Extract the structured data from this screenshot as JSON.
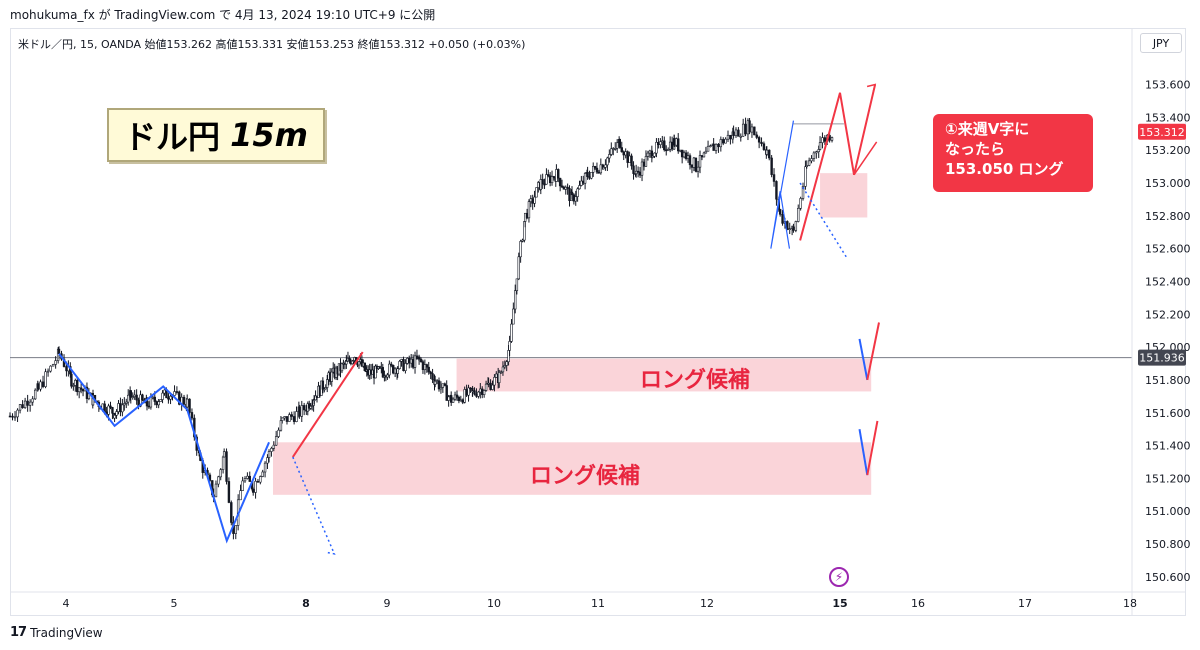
{
  "header": {
    "publish_line": "mohukuma_fx が TradingView.com で 4月 13, 2024 19:10 UTC+9 に公開"
  },
  "symbol_line": {
    "text": "米ドル／円, 15, OANDA  始値153.262  高値153.331  安値153.253  終値153.312  +0.050 (+0.03%)"
  },
  "currency": "JPY",
  "title": {
    "pair": "ドル円",
    "timeframe": "15m"
  },
  "zones": {
    "upper_label": "ロング候補",
    "lower_label": "ロング候補"
  },
  "callout": {
    "line1": "①来週V字に",
    "line2": "なったら",
    "line3": "153.050 ロング"
  },
  "footer": {
    "brand": "TradingView",
    "mark": "17"
  },
  "colors": {
    "bull_candle": "#131722",
    "zone_fill": "#f9cdd2",
    "red_line": "#f23645",
    "blue_line": "#2962ff",
    "price_tag": "#f23645",
    "ref_tag": "#434651"
  },
  "icons": {
    "flash": "lightning-icon",
    "logo": "tradingview-logo-icon"
  },
  "chart_data": {
    "type": "candlestick",
    "symbol": "USDJPY",
    "interval": "15",
    "y_ticks": [
      153.6,
      153.4,
      153.2,
      153.0,
      152.8,
      152.6,
      152.4,
      152.2,
      152.0,
      151.8,
      151.6,
      151.4,
      151.2,
      151.0,
      150.8,
      150.6
    ],
    "y_tick_labels": [
      "153.600",
      "153.400",
      "153.200",
      "153.000",
      "152.800",
      "152.600",
      "152.400",
      "152.200",
      "152.000",
      "151.800",
      "151.600",
      "151.400",
      "151.200",
      "151.000",
      "150.800",
      "150.600"
    ],
    "ylim": [
      150.52,
      153.78
    ],
    "x_ticks": [
      "4",
      "5",
      "8",
      "9",
      "10",
      "11",
      "12",
      "15",
      "16",
      "17",
      "18"
    ],
    "x_tick_days": [
      4,
      5,
      8,
      9,
      10,
      11,
      12,
      15,
      16,
      17,
      18
    ],
    "current_price_label": "153.312",
    "current_price": 153.312,
    "ref_price_label": "151.936",
    "ref_price": 151.936,
    "price_path": [
      [
        3.6,
        151.58
      ],
      [
        3.8,
        151.74
      ],
      [
        3.95,
        151.96
      ],
      [
        4.05,
        151.8
      ],
      [
        4.25,
        151.68
      ],
      [
        4.45,
        151.6
      ],
      [
        4.6,
        151.7
      ],
      [
        4.75,
        151.65
      ],
      [
        4.95,
        151.72
      ],
      [
        5.1,
        151.66
      ],
      [
        5.2,
        151.3
      ],
      [
        5.3,
        151.1
      ],
      [
        5.38,
        151.35
      ],
      [
        5.45,
        150.85
      ],
      [
        5.52,
        151.2
      ],
      [
        5.6,
        151.15
      ],
      [
        5.72,
        151.35
      ],
      [
        5.82,
        151.55
      ],
      [
        5.95,
        151.6
      ],
      [
        6.1,
        151.7
      ],
      [
        6.3,
        151.82
      ],
      [
        6.5,
        151.9
      ],
      [
        6.6,
        151.95
      ],
      [
        6.75,
        151.84
      ],
      [
        6.95,
        151.85
      ],
      [
        7.1,
        151.88
      ],
      [
        7.3,
        151.92
      ],
      [
        7.45,
        151.8
      ],
      [
        7.6,
        151.68
      ],
      [
        7.8,
        151.72
      ],
      [
        7.95,
        151.77
      ],
      [
        8.05,
        151.82
      ],
      [
        8.15,
        152.0
      ],
      [
        8.22,
        152.45
      ],
      [
        8.3,
        152.8
      ],
      [
        8.45,
        153.0
      ],
      [
        8.6,
        153.05
      ],
      [
        8.75,
        152.9
      ],
      [
        8.9,
        153.05
      ],
      [
        9.05,
        153.12
      ],
      [
        9.2,
        153.25
      ],
      [
        9.35,
        153.05
      ],
      [
        9.5,
        153.2
      ],
      [
        9.7,
        153.25
      ],
      [
        9.9,
        153.1
      ],
      [
        10.05,
        153.22
      ],
      [
        10.2,
        153.3
      ],
      [
        10.32,
        153.35
      ],
      [
        10.45,
        153.2
      ],
      [
        10.55,
        152.8
      ],
      [
        10.65,
        152.7
      ],
      [
        10.75,
        153.1
      ],
      [
        10.85,
        153.25
      ],
      [
        10.95,
        153.31
      ]
    ],
    "zones": [
      {
        "name": "upper-zone",
        "x0": 7.65,
        "x1": 11.4,
        "y0": 151.73,
        "y1": 151.93
      },
      {
        "name": "lower-zone",
        "x0": 5.75,
        "x1": 11.4,
        "y0": 151.1,
        "y1": 151.42
      },
      {
        "name": "entry-zone",
        "x0": 10.85,
        "x1": 11.35,
        "y0": 152.79,
        "y1": 153.06
      }
    ],
    "annotations": {
      "blue_zigzag": [
        [
          3.95,
          151.96
        ],
        [
          4.45,
          151.52
        ],
        [
          4.9,
          151.76
        ],
        [
          5.1,
          151.62
        ],
        [
          5.4,
          150.82
        ],
        [
          5.72,
          151.42
        ]
      ],
      "red_trend_1": [
        [
          5.9,
          151.33
        ],
        [
          6.7,
          151.97
        ]
      ],
      "blue_dotted_1": [
        [
          5.9,
          151.33
        ],
        [
          6.35,
          150.74
        ],
        [
          6.25,
          150.75
        ]
      ],
      "blue_v": [
        [
          10.65,
          153.38
        ],
        [
          10.48,
          152.6
        ],
        [
          10.55,
          152.95
        ],
        [
          10.62,
          152.6
        ]
      ],
      "red_v_main": [
        [
          10.7,
          152.65
        ],
        [
          11.0,
          153.55
        ],
        [
          11.18,
          153.05
        ],
        [
          11.45,
          153.6
        ]
      ],
      "red_callout_line": [
        [
          11.18,
          153.05
        ],
        [
          11.47,
          153.25
        ]
      ],
      "blue_dotted_2": [
        [
          10.7,
          153.0
        ],
        [
          11.08,
          152.55
        ],
        [
          11.05,
          152.56
        ]
      ],
      "grey_hline": [
        [
          10.65,
          153.36
        ],
        [
          11.05,
          153.36
        ]
      ],
      "mini_v_upper": [
        [
          11.25,
          152.05
        ],
        [
          11.35,
          151.8
        ],
        [
          11.5,
          152.15
        ]
      ],
      "mini_v_lower": [
        [
          11.25,
          151.5
        ],
        [
          11.35,
          151.22
        ],
        [
          11.48,
          151.55
        ]
      ]
    }
  }
}
